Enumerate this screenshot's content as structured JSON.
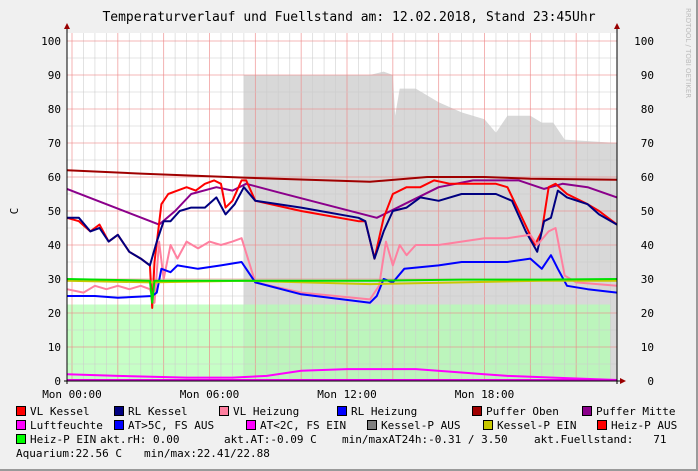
{
  "chart_data": {
    "type": "line",
    "title": "Temperaturverlauf und Fuellstand am: 12.02.2018, Stand 23:45Uhr",
    "ylabel": "C",
    "ylim": [
      0,
      100
    ],
    "yticks": [
      0,
      10,
      20,
      30,
      40,
      50,
      60,
      70,
      80,
      90,
      100
    ],
    "xlim_hours": [
      -0.22,
      23.78
    ],
    "xticks": [
      {
        "h": 0,
        "label": "Mon 00:00"
      },
      {
        "h": 6,
        "label": "Mon 06:00"
      },
      {
        "h": 12,
        "label": "Mon 12:00"
      },
      {
        "h": 18,
        "label": "Mon 18:00"
      }
    ],
    "grid": true,
    "watermark": "RRDTOOL / TOBI OETIKER",
    "areas": [
      {
        "name": "Kessel-P AUS",
        "color": "#d8d8d8",
        "points": [
          [
            7.5,
            0
          ],
          [
            7.5,
            90
          ],
          [
            13.0,
            90
          ],
          [
            13.6,
            91
          ],
          [
            14.0,
            90
          ],
          [
            14.1,
            78
          ],
          [
            14.3,
            86
          ],
          [
            15,
            86
          ],
          [
            16,
            82
          ],
          [
            17,
            79
          ],
          [
            18,
            77
          ],
          [
            18.5,
            73
          ],
          [
            19,
            78
          ],
          [
            20,
            78
          ],
          [
            20.5,
            76
          ],
          [
            21,
            76
          ],
          [
            21.5,
            71
          ],
          [
            23.78,
            70
          ],
          [
            23.78,
            0
          ]
        ]
      },
      {
        "name": "Heiz-P EIN",
        "color": "#b3ffb3",
        "points": [
          [
            -0.22,
            0
          ],
          [
            -0.22,
            22.5
          ],
          [
            23.5,
            22.5
          ],
          [
            23.5,
            0
          ]
        ]
      }
    ],
    "series": [
      {
        "name": "Puffer Oben",
        "color": "#a00000",
        "points": [
          [
            -0.22,
            62
          ],
          [
            3,
            61
          ],
          [
            7.5,
            59.8
          ],
          [
            13,
            58.6
          ],
          [
            15.5,
            60
          ],
          [
            18,
            60
          ],
          [
            20,
            59.5
          ],
          [
            23.78,
            59.2
          ]
        ]
      },
      {
        "name": "Puffer Mitte",
        "color": "#8b008b",
        "points": [
          [
            -0.22,
            56.5
          ],
          [
            1.5,
            52
          ],
          [
            3.8,
            46
          ],
          [
            4.5,
            50
          ],
          [
            5.2,
            55
          ],
          [
            6.3,
            57
          ],
          [
            7.0,
            56
          ],
          [
            7.6,
            58
          ],
          [
            9,
            55.5
          ],
          [
            11,
            52
          ],
          [
            13.3,
            48
          ],
          [
            14.5,
            52
          ],
          [
            16,
            57
          ],
          [
            17.5,
            59
          ],
          [
            19.5,
            59
          ],
          [
            20.6,
            56.5
          ],
          [
            21.4,
            58
          ],
          [
            22.5,
            57
          ],
          [
            23.78,
            54
          ]
        ]
      },
      {
        "name": "VL Kessel",
        "color": "#ff0000",
        "points": [
          [
            -0.22,
            48
          ],
          [
            0.3,
            47
          ],
          [
            0.8,
            44
          ],
          [
            1.2,
            46
          ],
          [
            1.6,
            41
          ],
          [
            2.0,
            43
          ],
          [
            2.5,
            38
          ],
          [
            3.0,
            36
          ],
          [
            3.4,
            34
          ],
          [
            3.5,
            21.5
          ],
          [
            3.6,
            35
          ],
          [
            3.9,
            52
          ],
          [
            4.2,
            55
          ],
          [
            4.6,
            56
          ],
          [
            5.0,
            57
          ],
          [
            5.4,
            56
          ],
          [
            5.8,
            58
          ],
          [
            6.2,
            59
          ],
          [
            6.5,
            58
          ],
          [
            6.7,
            51
          ],
          [
            7.0,
            53
          ],
          [
            7.4,
            59
          ],
          [
            7.6,
            59
          ],
          [
            8.0,
            53
          ],
          [
            10,
            50
          ],
          [
            12.5,
            47
          ],
          [
            12.8,
            47
          ],
          [
            13.2,
            36
          ],
          [
            13.6,
            48
          ],
          [
            14.0,
            55
          ],
          [
            14.6,
            57
          ],
          [
            15.2,
            57
          ],
          [
            15.8,
            59
          ],
          [
            16.5,
            58
          ],
          [
            18.5,
            58
          ],
          [
            19.0,
            57
          ],
          [
            19.5,
            50
          ],
          [
            20.2,
            40
          ],
          [
            20.5,
            44
          ],
          [
            20.8,
            57
          ],
          [
            21.1,
            58
          ],
          [
            21.6,
            55
          ],
          [
            22.5,
            52
          ],
          [
            23.0,
            50
          ],
          [
            23.78,
            46
          ]
        ]
      },
      {
        "name": "RL Kessel",
        "color": "#000080",
        "points": [
          [
            -0.22,
            48
          ],
          [
            0.3,
            48
          ],
          [
            0.8,
            44
          ],
          [
            1.2,
            45
          ],
          [
            1.6,
            41
          ],
          [
            2.0,
            43
          ],
          [
            2.5,
            38
          ],
          [
            3.0,
            36
          ],
          [
            3.4,
            34
          ],
          [
            3.7,
            41
          ],
          [
            4.0,
            47
          ],
          [
            4.3,
            47
          ],
          [
            4.7,
            50
          ],
          [
            5.2,
            51
          ],
          [
            5.8,
            51
          ],
          [
            6.3,
            54
          ],
          [
            6.7,
            49
          ],
          [
            7.1,
            52
          ],
          [
            7.5,
            57
          ],
          [
            8.0,
            53
          ],
          [
            10,
            51
          ],
          [
            12.5,
            48
          ],
          [
            12.8,
            47
          ],
          [
            13.2,
            36
          ],
          [
            13.6,
            44
          ],
          [
            14.0,
            50
          ],
          [
            14.6,
            51
          ],
          [
            15.2,
            54
          ],
          [
            16,
            53
          ],
          [
            17,
            55
          ],
          [
            18.5,
            55
          ],
          [
            19.2,
            53
          ],
          [
            19.8,
            44
          ],
          [
            20.3,
            38
          ],
          [
            20.6,
            47
          ],
          [
            20.9,
            48
          ],
          [
            21.2,
            56
          ],
          [
            21.6,
            54
          ],
          [
            22.5,
            52
          ],
          [
            23,
            49
          ],
          [
            23.78,
            46
          ]
        ]
      },
      {
        "name": "VL Heizung",
        "color": "#ff80a0",
        "points": [
          [
            -0.22,
            27
          ],
          [
            0.5,
            26
          ],
          [
            1,
            28
          ],
          [
            1.5,
            27
          ],
          [
            2,
            28
          ],
          [
            2.5,
            27
          ],
          [
            3,
            28
          ],
          [
            3.4,
            27
          ],
          [
            3.6,
            23
          ],
          [
            3.8,
            41
          ],
          [
            4.0,
            30
          ],
          [
            4.3,
            40
          ],
          [
            4.6,
            36
          ],
          [
            5,
            41
          ],
          [
            5.5,
            39
          ],
          [
            6,
            41
          ],
          [
            6.5,
            40
          ],
          [
            7,
            41
          ],
          [
            7.4,
            42
          ],
          [
            8.0,
            29
          ],
          [
            10,
            26
          ],
          [
            13,
            24
          ],
          [
            13.4,
            28
          ],
          [
            13.7,
            41
          ],
          [
            14.0,
            34
          ],
          [
            14.3,
            40
          ],
          [
            14.6,
            37
          ],
          [
            15,
            40
          ],
          [
            16,
            40
          ],
          [
            17,
            41
          ],
          [
            18,
            42
          ],
          [
            19,
            42
          ],
          [
            20,
            43
          ],
          [
            20.3,
            40
          ],
          [
            20.8,
            44
          ],
          [
            21.1,
            45
          ],
          [
            21.5,
            31
          ],
          [
            22,
            29
          ],
          [
            23.78,
            28
          ]
        ]
      },
      {
        "name": "RL Heizung",
        "color": "#0000ff",
        "points": [
          [
            -0.22,
            25
          ],
          [
            1,
            25
          ],
          [
            2,
            24.5
          ],
          [
            3.5,
            25
          ],
          [
            3.7,
            26
          ],
          [
            3.9,
            33
          ],
          [
            4.3,
            32
          ],
          [
            4.6,
            34
          ],
          [
            5.5,
            33
          ],
          [
            6.5,
            34
          ],
          [
            7.4,
            35
          ],
          [
            7.6,
            33
          ],
          [
            8.0,
            29
          ],
          [
            10,
            25.5
          ],
          [
            13,
            23
          ],
          [
            13.3,
            25
          ],
          [
            13.6,
            30
          ],
          [
            14.0,
            29
          ],
          [
            14.5,
            33
          ],
          [
            16,
            34
          ],
          [
            17,
            35
          ],
          [
            18,
            35
          ],
          [
            19,
            35
          ],
          [
            20,
            36
          ],
          [
            20.5,
            33
          ],
          [
            20.9,
            37
          ],
          [
            21.2,
            33
          ],
          [
            21.6,
            28
          ],
          [
            22.5,
            27
          ],
          [
            23.78,
            26
          ]
        ]
      },
      {
        "name": "Kessel-P EIN",
        "color": "#c8c800",
        "points": [
          [
            -0.22,
            29.5
          ],
          [
            3.4,
            29
          ],
          [
            7.5,
            29.5
          ],
          [
            13,
            28.5
          ],
          [
            17,
            29
          ],
          [
            20.5,
            29.5
          ],
          [
            23.78,
            29.5
          ]
        ]
      },
      {
        "name": "Heiz-P EIN",
        "color": "#00e000",
        "points": [
          [
            -0.22,
            30
          ],
          [
            3.4,
            29.5
          ],
          [
            3.5,
            23
          ],
          [
            3.6,
            29.5
          ],
          [
            7.5,
            29.5
          ],
          [
            13,
            29.5
          ],
          [
            17,
            29.8
          ],
          [
            20.5,
            29.8
          ],
          [
            23.78,
            30
          ]
        ]
      },
      {
        "name": "Luftfeuchte",
        "color": "#ff00ff",
        "points": [
          [
            -0.22,
            2
          ],
          [
            2,
            1.5
          ],
          [
            5,
            1
          ],
          [
            7,
            1
          ],
          [
            8.5,
            1.5
          ],
          [
            10,
            3
          ],
          [
            12,
            3.5
          ],
          [
            15,
            3.5
          ],
          [
            17,
            2.5
          ],
          [
            18,
            2
          ],
          [
            19,
            1.5
          ],
          [
            21,
            1
          ],
          [
            23.78,
            0.3
          ]
        ]
      },
      {
        "name": "AT<2C, FS EIN",
        "color": "#e000e0",
        "points": [
          [
            -0.22,
            0.3
          ],
          [
            23.78,
            0.3
          ]
        ]
      }
    ],
    "legend": [
      [
        {
          "label": "VL Kessel",
          "color": "#ff0000"
        },
        {
          "label": "RL Kessel",
          "color": "#000080"
        },
        {
          "label": "VL Heizung",
          "color": "#ff80a0"
        },
        {
          "label": "RL Heizung",
          "color": "#0000ff"
        },
        {
          "label": "Puffer Oben",
          "color": "#a00000"
        },
        {
          "label": "Puffer Mitte",
          "color": "#8b008b"
        }
      ],
      [
        {
          "label": "Luftfeuchte",
          "color": "#ff00ff"
        },
        {
          "label": "AT>5C, FS AUS",
          "color": "#0000ff"
        },
        {
          "label": "AT<2C, FS EIN",
          "color": "#ff00ff"
        },
        {
          "label": "Kessel-P AUS",
          "color": "#808080"
        },
        {
          "label": "Kessel-P EIN",
          "color": "#c8c800"
        },
        {
          "label": "Heiz-P AUS",
          "color": "#ff0000"
        }
      ],
      [
        {
          "label": "Heiz-P EIN",
          "color": "#00ff00"
        }
      ]
    ],
    "info": {
      "rh": "akt.rH: 0.00",
      "at": "akt.AT:-0.09 C",
      "minmax24": "min/maxAT24h:-0.31 / 3.50",
      "fuell": "akt.Fuellstand:   71",
      "aquarium": "Aquarium:22.56 C",
      "aquarium_minmax": "min/max:22.41/22.88"
    }
  }
}
